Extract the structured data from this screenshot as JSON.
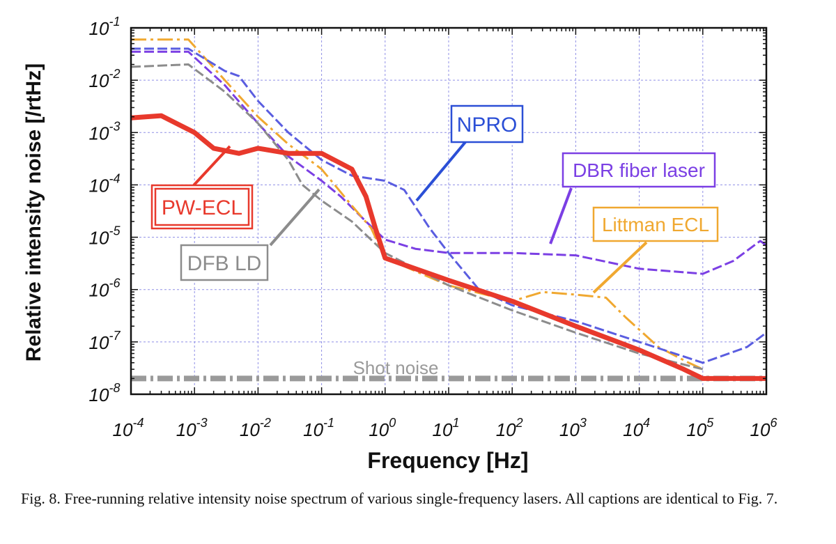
{
  "figure": {
    "caption": "Fig. 8. Free-running relative intensity noise spectrum of various single-frequency lasers. All captions are identical to Fig. 7."
  },
  "chart_data": {
    "type": "line",
    "xlabel": "Frequency [Hz]",
    "ylabel": "Relative intensity noise [/rtHz]",
    "xscale": "log",
    "yscale": "log",
    "xlim": [
      0.0001,
      1000000
    ],
    "ylim": [
      1e-08,
      0.1
    ],
    "x_ticks": [
      {
        "value": 0.0001,
        "base": "10",
        "exp": "-4"
      },
      {
        "value": 0.001,
        "base": "10",
        "exp": "-3"
      },
      {
        "value": 0.01,
        "base": "10",
        "exp": "-2"
      },
      {
        "value": 0.1,
        "base": "10",
        "exp": "-1"
      },
      {
        "value": 1,
        "base": "10",
        "exp": "0"
      },
      {
        "value": 10,
        "base": "10",
        "exp": "1"
      },
      {
        "value": 100,
        "base": "10",
        "exp": "2"
      },
      {
        "value": 1000,
        "base": "10",
        "exp": "3"
      },
      {
        "value": 10000,
        "base": "10",
        "exp": "4"
      },
      {
        "value": 100000,
        "base": "10",
        "exp": "5"
      },
      {
        "value": 1000000,
        "base": "10",
        "exp": "6"
      }
    ],
    "y_ticks": [
      {
        "value": 1e-08,
        "base": "10",
        "exp": "-8"
      },
      {
        "value": 1e-07,
        "base": "10",
        "exp": "-7"
      },
      {
        "value": 1e-06,
        "base": "10",
        "exp": "-6"
      },
      {
        "value": 1e-05,
        "base": "10",
        "exp": "-5"
      },
      {
        "value": 0.0001,
        "base": "10",
        "exp": "-4"
      },
      {
        "value": 0.001,
        "base": "10",
        "exp": "-3"
      },
      {
        "value": 0.01,
        "base": "10",
        "exp": "-2"
      },
      {
        "value": 0.1,
        "base": "10",
        "exp": "-1"
      }
    ],
    "grid": true,
    "series": [
      {
        "name": "Shot noise",
        "color": "#9a9a9a",
        "style": "dashdot",
        "points": [
          [
            0.0001,
            2e-08
          ],
          [
            1000000,
            2e-08
          ]
        ]
      },
      {
        "name": "DBR fiber laser",
        "color": "#7b3fe4",
        "style": "dashed",
        "points": [
          [
            0.0001,
            0.035
          ],
          [
            0.0008,
            0.035
          ],
          [
            0.003,
            0.008
          ],
          [
            0.01,
            0.0015
          ],
          [
            0.03,
            0.00035
          ],
          [
            0.1,
            0.00012
          ],
          [
            0.2,
            6e-05
          ],
          [
            0.5,
            2e-05
          ],
          [
            1,
            9e-06
          ],
          [
            3,
            6e-06
          ],
          [
            10,
            5e-06
          ],
          [
            100,
            5e-06
          ],
          [
            1000,
            4.5e-06
          ],
          [
            10000,
            2.5e-06
          ],
          [
            100000,
            2e-06
          ],
          [
            300000,
            3.5e-06
          ],
          [
            800000,
            8.5e-06
          ],
          [
            1000000,
            7e-06
          ]
        ]
      },
      {
        "name": "Littman ECL",
        "color": "#f0a830",
        "style": "dashdot",
        "points": [
          [
            0.0001,
            0.06
          ],
          [
            0.0008,
            0.06
          ],
          [
            0.003,
            0.01
          ],
          [
            0.01,
            0.002
          ],
          [
            0.03,
            0.0006
          ],
          [
            0.1,
            0.0002
          ],
          [
            0.3,
            4e-05
          ],
          [
            0.6,
            1.5e-05
          ],
          [
            1,
            4e-06
          ],
          [
            10,
            1.2e-06
          ],
          [
            100,
            6e-07
          ],
          [
            300,
            9e-07
          ],
          [
            1000,
            8e-07
          ],
          [
            3000,
            7e-07
          ],
          [
            6000,
            3e-07
          ],
          [
            20000,
            8e-08
          ],
          [
            60000,
            4e-08
          ],
          [
            100000,
            3e-08
          ]
        ]
      },
      {
        "name": "DFB LD",
        "color": "#8c8c8c",
        "style": "dashed",
        "points": [
          [
            0.0001,
            0.018
          ],
          [
            0.0008,
            0.02
          ],
          [
            0.003,
            0.006
          ],
          [
            0.01,
            0.0015
          ],
          [
            0.03,
            0.0003
          ],
          [
            0.05,
            0.0001
          ],
          [
            0.1,
            5e-05
          ],
          [
            0.3,
            2e-05
          ],
          [
            1,
            5e-06
          ],
          [
            10,
            1.2e-06
          ],
          [
            100,
            4e-07
          ],
          [
            1000,
            1.5e-07
          ],
          [
            10000,
            6e-08
          ],
          [
            100000,
            3e-08
          ]
        ]
      },
      {
        "name": "NPRO",
        "color": "#5a5de0",
        "style": "dashed",
        "points": [
          [
            0.0001,
            0.04
          ],
          [
            0.0008,
            0.04
          ],
          [
            0.003,
            0.015
          ],
          [
            0.005,
            0.012
          ],
          [
            0.01,
            0.004
          ],
          [
            0.03,
            0.001
          ],
          [
            0.1,
            0.0003
          ],
          [
            0.3,
            0.00015
          ],
          [
            1,
            0.00012
          ],
          [
            2,
            8e-05
          ],
          [
            5,
            1.5e-05
          ],
          [
            10,
            5e-06
          ],
          [
            30,
            1e-06
          ],
          [
            100,
            5e-07
          ],
          [
            1000,
            2.5e-07
          ],
          [
            10000,
            1e-07
          ],
          [
            100000,
            4e-08
          ],
          [
            500000,
            8e-08
          ],
          [
            1000000,
            1.5e-07
          ]
        ]
      },
      {
        "name": "PW-ECL",
        "color": "#e8392c",
        "style": "solid",
        "points": [
          [
            0.0001,
            0.0019
          ],
          [
            0.0003,
            0.0021
          ],
          [
            0.001,
            0.001
          ],
          [
            0.002,
            0.0005
          ],
          [
            0.005,
            0.0004
          ],
          [
            0.01,
            0.0005
          ],
          [
            0.03,
            0.0004
          ],
          [
            0.1,
            0.0004
          ],
          [
            0.3,
            0.0002
          ],
          [
            0.5,
            6e-05
          ],
          [
            0.7,
            1.5e-05
          ],
          [
            1,
            4e-06
          ],
          [
            3,
            2.5e-06
          ],
          [
            10,
            1.5e-06
          ],
          [
            100,
            6e-07
          ],
          [
            1000,
            2e-07
          ],
          [
            10000,
            7e-08
          ],
          [
            50000,
            3e-08
          ],
          [
            100000,
            2e-08
          ],
          [
            1000000,
            2e-08
          ]
        ]
      }
    ],
    "annotations": [
      {
        "text": "NPRO",
        "color": "#2b4fd6",
        "double_border": false
      },
      {
        "text": "DBR fiber laser",
        "color": "#7b3fe4",
        "double_border": false
      },
      {
        "text": "Littman ECL",
        "color": "#f0a830",
        "double_border": false
      },
      {
        "text": "PW-ECL",
        "color": "#e8392c",
        "double_border": true
      },
      {
        "text": "DFB LD",
        "color": "#8c8c8c",
        "double_border": false
      },
      {
        "text": "Shot noise",
        "color": "#9a9a9a",
        "boxed": false
      }
    ]
  }
}
